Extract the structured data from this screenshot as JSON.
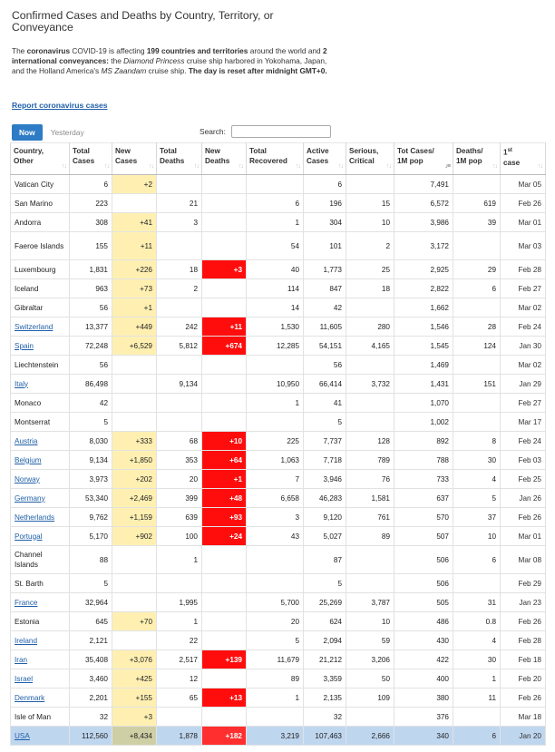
{
  "page": {
    "title": "Confirmed Cases and Deaths by Country, Territory, or Conveyance",
    "intro": {
      "p1": "The ",
      "b1": "coronavirus",
      "p2": " COVID-19 is affecting ",
      "b2": "199 countries and territories",
      "p3": " around the world and ",
      "b3": "2 international conveyances:",
      "p4": " the ",
      "i1": "Diamond Princess",
      "p5": " cruise ship harbored in Yokohama, Japan, and the Holland America's ",
      "i2": "MS Zaandam",
      "p6": " cruise ship. ",
      "b4": "The day is reset after midnight GMT+0."
    },
    "report_link": "Report coronavirus cases",
    "tabs": {
      "now": "Now",
      "yesterday": "Yesterday"
    },
    "search": {
      "label": "Search:",
      "value": ""
    }
  },
  "table": {
    "headers": {
      "country": [
        "Country,",
        "Other"
      ],
      "total_cases": [
        "Total",
        "Cases"
      ],
      "new_cases": [
        "New",
        "Cases"
      ],
      "total_deaths": [
        "Total",
        "Deaths"
      ],
      "new_deaths": [
        "New",
        "Deaths"
      ],
      "total_recovered": [
        "Total",
        "Recovered"
      ],
      "active_cases": [
        "Active",
        "Cases"
      ],
      "serious": [
        "Serious,",
        "Critical"
      ],
      "tot_per_m": [
        "Tot Cases/",
        "1M pop"
      ],
      "deaths_per_m": [
        "Deaths/",
        "1M pop"
      ],
      "first_case": [
        "1",
        "st",
        "case"
      ]
    },
    "rows": [
      {
        "country": "Vatican City",
        "link": false,
        "total": "6",
        "new": "+2",
        "deaths": "",
        "new_deaths": "",
        "recovered": "",
        "active": "6",
        "serious": "",
        "per_m": "7,491",
        "deaths_m": "",
        "first": "Mar 05"
      },
      {
        "country": "San Marino",
        "link": false,
        "total": "223",
        "new": "",
        "deaths": "21",
        "new_deaths": "",
        "recovered": "6",
        "active": "196",
        "serious": "15",
        "per_m": "6,572",
        "deaths_m": "619",
        "first": "Feb 26"
      },
      {
        "country": "Andorra",
        "link": false,
        "total": "308",
        "new": "+41",
        "deaths": "3",
        "new_deaths": "",
        "recovered": "1",
        "active": "304",
        "serious": "10",
        "per_m": "3,986",
        "deaths_m": "39",
        "first": "Mar 01"
      },
      {
        "country": "Faeroe Islands",
        "link": false,
        "tall": true,
        "total": "155",
        "new": "+11",
        "deaths": "",
        "new_deaths": "",
        "recovered": "54",
        "active": "101",
        "serious": "2",
        "per_m": "3,172",
        "deaths_m": "",
        "first": "Mar 03"
      },
      {
        "country": "Luxembourg",
        "link": false,
        "total": "1,831",
        "new": "+226",
        "deaths": "18",
        "new_deaths": "+3",
        "recovered": "40",
        "active": "1,773",
        "serious": "25",
        "per_m": "2,925",
        "deaths_m": "29",
        "first": "Feb 28"
      },
      {
        "country": "Iceland",
        "link": false,
        "total": "963",
        "new": "+73",
        "deaths": "2",
        "new_deaths": "",
        "recovered": "114",
        "active": "847",
        "serious": "18",
        "per_m": "2,822",
        "deaths_m": "6",
        "first": "Feb 27"
      },
      {
        "country": "Gibraltar",
        "link": false,
        "total": "56",
        "new": "+1",
        "deaths": "",
        "new_deaths": "",
        "recovered": "14",
        "active": "42",
        "serious": "",
        "per_m": "1,662",
        "deaths_m": "",
        "first": "Mar 02"
      },
      {
        "country": "Switzerland",
        "link": true,
        "total": "13,377",
        "new": "+449",
        "deaths": "242",
        "new_deaths": "+11",
        "recovered": "1,530",
        "active": "11,605",
        "serious": "280",
        "per_m": "1,546",
        "deaths_m": "28",
        "first": "Feb 24"
      },
      {
        "country": "Spain",
        "link": true,
        "total": "72,248",
        "new": "+6,529",
        "deaths": "5,812",
        "new_deaths": "+674",
        "recovered": "12,285",
        "active": "54,151",
        "serious": "4,165",
        "per_m": "1,545",
        "deaths_m": "124",
        "first": "Jan 30"
      },
      {
        "country": "Liechtenstein",
        "link": false,
        "total": "56",
        "new": "",
        "deaths": "",
        "new_deaths": "",
        "recovered": "",
        "active": "56",
        "serious": "",
        "per_m": "1,469",
        "deaths_m": "",
        "first": "Mar 02"
      },
      {
        "country": "Italy",
        "link": true,
        "total": "86,498",
        "new": "",
        "deaths": "9,134",
        "new_deaths": "",
        "recovered": "10,950",
        "active": "66,414",
        "serious": "3,732",
        "per_m": "1,431",
        "deaths_m": "151",
        "first": "Jan 29"
      },
      {
        "country": "Monaco",
        "link": false,
        "total": "42",
        "new": "",
        "deaths": "",
        "new_deaths": "",
        "recovered": "1",
        "active": "41",
        "serious": "",
        "per_m": "1,070",
        "deaths_m": "",
        "first": "Feb 27"
      },
      {
        "country": "Montserrat",
        "link": false,
        "total": "5",
        "new": "",
        "deaths": "",
        "new_deaths": "",
        "recovered": "",
        "active": "5",
        "serious": "",
        "per_m": "1,002",
        "deaths_m": "",
        "first": "Mar 17"
      },
      {
        "country": "Austria",
        "link": true,
        "total": "8,030",
        "new": "+333",
        "deaths": "68",
        "new_deaths": "+10",
        "recovered": "225",
        "active": "7,737",
        "serious": "128",
        "per_m": "892",
        "deaths_m": "8",
        "first": "Feb 24"
      },
      {
        "country": "Belgium",
        "link": true,
        "total": "9,134",
        "new": "+1,850",
        "deaths": "353",
        "new_deaths": "+64",
        "recovered": "1,063",
        "active": "7,718",
        "serious": "789",
        "per_m": "788",
        "deaths_m": "30",
        "first": "Feb 03"
      },
      {
        "country": "Norway",
        "link": true,
        "total": "3,973",
        "new": "+202",
        "deaths": "20",
        "new_deaths": "+1",
        "recovered": "7",
        "active": "3,946",
        "serious": "76",
        "per_m": "733",
        "deaths_m": "4",
        "first": "Feb 25"
      },
      {
        "country": "Germany",
        "link": true,
        "total": "53,340",
        "new": "+2,469",
        "deaths": "399",
        "new_deaths": "+48",
        "recovered": "6,658",
        "active": "46,283",
        "serious": "1,581",
        "per_m": "637",
        "deaths_m": "5",
        "first": "Jan 26"
      },
      {
        "country": "Netherlands",
        "link": true,
        "total": "9,762",
        "new": "+1,159",
        "deaths": "639",
        "new_deaths": "+93",
        "recovered": "3",
        "active": "9,120",
        "serious": "761",
        "per_m": "570",
        "deaths_m": "37",
        "first": "Feb 26"
      },
      {
        "country": "Portugal",
        "link": true,
        "total": "5,170",
        "new": "+902",
        "deaths": "100",
        "new_deaths": "+24",
        "recovered": "43",
        "active": "5,027",
        "serious": "89",
        "per_m": "507",
        "deaths_m": "10",
        "first": "Mar 01"
      },
      {
        "country": "Channel Islands",
        "link": false,
        "tall": true,
        "total": "88",
        "new": "",
        "deaths": "1",
        "new_deaths": "",
        "recovered": "",
        "active": "87",
        "serious": "",
        "per_m": "506",
        "deaths_m": "6",
        "first": "Mar 08"
      },
      {
        "country": "St. Barth",
        "link": false,
        "total": "5",
        "new": "",
        "deaths": "",
        "new_deaths": "",
        "recovered": "",
        "active": "5",
        "serious": "",
        "per_m": "506",
        "deaths_m": "",
        "first": "Feb 29"
      },
      {
        "country": "France",
        "link": true,
        "total": "32,964",
        "new": "",
        "deaths": "1,995",
        "new_deaths": "",
        "recovered": "5,700",
        "active": "25,269",
        "serious": "3,787",
        "per_m": "505",
        "deaths_m": "31",
        "first": "Jan 23"
      },
      {
        "country": "Estonia",
        "link": false,
        "total": "645",
        "new": "+70",
        "deaths": "1",
        "new_deaths": "",
        "recovered": "20",
        "active": "624",
        "serious": "10",
        "per_m": "486",
        "deaths_m": "0.8",
        "first": "Feb 26"
      },
      {
        "country": "Ireland",
        "link": true,
        "total": "2,121",
        "new": "",
        "deaths": "22",
        "new_deaths": "",
        "recovered": "5",
        "active": "2,094",
        "serious": "59",
        "per_m": "430",
        "deaths_m": "4",
        "first": "Feb 28"
      },
      {
        "country": "Iran",
        "link": true,
        "total": "35,408",
        "new": "+3,076",
        "deaths": "2,517",
        "new_deaths": "+139",
        "recovered": "11,679",
        "active": "21,212",
        "serious": "3,206",
        "per_m": "422",
        "deaths_m": "30",
        "first": "Feb 18"
      },
      {
        "country": "Israel",
        "link": true,
        "total": "3,460",
        "new": "+425",
        "deaths": "12",
        "new_deaths": "",
        "recovered": "89",
        "active": "3,359",
        "serious": "50",
        "per_m": "400",
        "deaths_m": "1",
        "first": "Feb 20"
      },
      {
        "country": "Denmark",
        "link": true,
        "total": "2,201",
        "new": "+155",
        "deaths": "65",
        "new_deaths": "+13",
        "recovered": "1",
        "active": "2,135",
        "serious": "109",
        "per_m": "380",
        "deaths_m": "11",
        "first": "Feb 26"
      },
      {
        "country": "Isle of Man",
        "link": false,
        "total": "32",
        "new": "+3",
        "deaths": "",
        "new_deaths": "",
        "recovered": "",
        "active": "32",
        "serious": "",
        "per_m": "376",
        "deaths_m": "",
        "first": "Mar 18"
      },
      {
        "country": "USA",
        "link": true,
        "selected": true,
        "total": "112,560",
        "new": "+8,434",
        "deaths": "1,878",
        "new_deaths": "+182",
        "recovered": "3,219",
        "active": "107,463",
        "serious": "2,666",
        "per_m": "340",
        "deaths_m": "6",
        "first": "Jan 20"
      }
    ]
  }
}
